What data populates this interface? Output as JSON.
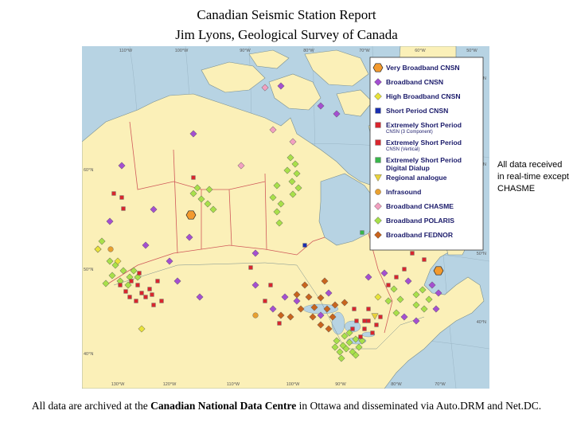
{
  "header": {
    "title": "Canadian Seismic Station Report",
    "subtitle": "Jim Lyons, Geological Survey of Canada"
  },
  "side_note": "All data received in real-time except CHASME",
  "footer": {
    "prefix": "All data are archived at the ",
    "highlight": "Canadian National Data Centre",
    "middle": " in Ottawa and disseminated via ",
    "autodrm": "Auto.DRM",
    "and": " and ",
    "netdc": "Net.DC",
    "suffix": "."
  },
  "map": {
    "top_ticks": [
      "110°W",
      "100°W",
      "90°W",
      "80°W",
      "70°W",
      "60°W",
      "50°W"
    ],
    "left_ticks": [
      "60°N",
      "50°N",
      "40°N"
    ],
    "right_ticks": [
      "70°N",
      "60°N",
      "50°N",
      "40°N"
    ],
    "bottom_ticks": [
      "130°W",
      "120°W",
      "110°W",
      "100°W",
      "90°W",
      "80°W",
      "70°W"
    ],
    "colors": {
      "water": "#b7d3e3",
      "land": "#fbf0b8",
      "border": "#d05a5a"
    }
  },
  "legend": [
    {
      "key": "vbb",
      "label": "Very Broadband CNSN",
      "shape": "hexagon",
      "color": "#f39a2e"
    },
    {
      "key": "bb",
      "label": "Broadband CNSN",
      "shape": "diamond",
      "color": "#a44fd0"
    },
    {
      "key": "hbb",
      "label": "High Broadband CNSN",
      "shape": "diamond",
      "color": "#e8e23a"
    },
    {
      "key": "sp",
      "label": "Short Period CNSN",
      "shape": "square",
      "color": "#1a2fb0"
    },
    {
      "key": "esp3",
      "label": "Extremely Short Period",
      "sub": "CNSN (3 Component)",
      "shape": "square",
      "color": "#d8262e"
    },
    {
      "key": "espv",
      "label": "Extremely Short Period",
      "sub": "CNSN (Vertical)",
      "shape": "square",
      "color": "#d8262e"
    },
    {
      "key": "espd",
      "label": "Extremely Short Period",
      "label2": "Digital Dialup",
      "shape": "square",
      "color": "#39b54a"
    },
    {
      "key": "reg",
      "label": "Regional analogue",
      "shape": "triangle",
      "color": "#e8d23a"
    },
    {
      "key": "inf",
      "label": "Infrasound",
      "shape": "circle",
      "color": "#e8a030"
    },
    {
      "key": "chasme",
      "label": "Broadband CHASME",
      "shape": "diamond",
      "color": "#f2a0c0"
    },
    {
      "key": "polaris",
      "label": "Broadband POLARIS",
      "shape": "diamond",
      "color": "#a8e04a"
    },
    {
      "key": "fednor",
      "label": "Broadband FEDNOR",
      "shape": "diamond",
      "color": "#c8641e"
    }
  ]
}
